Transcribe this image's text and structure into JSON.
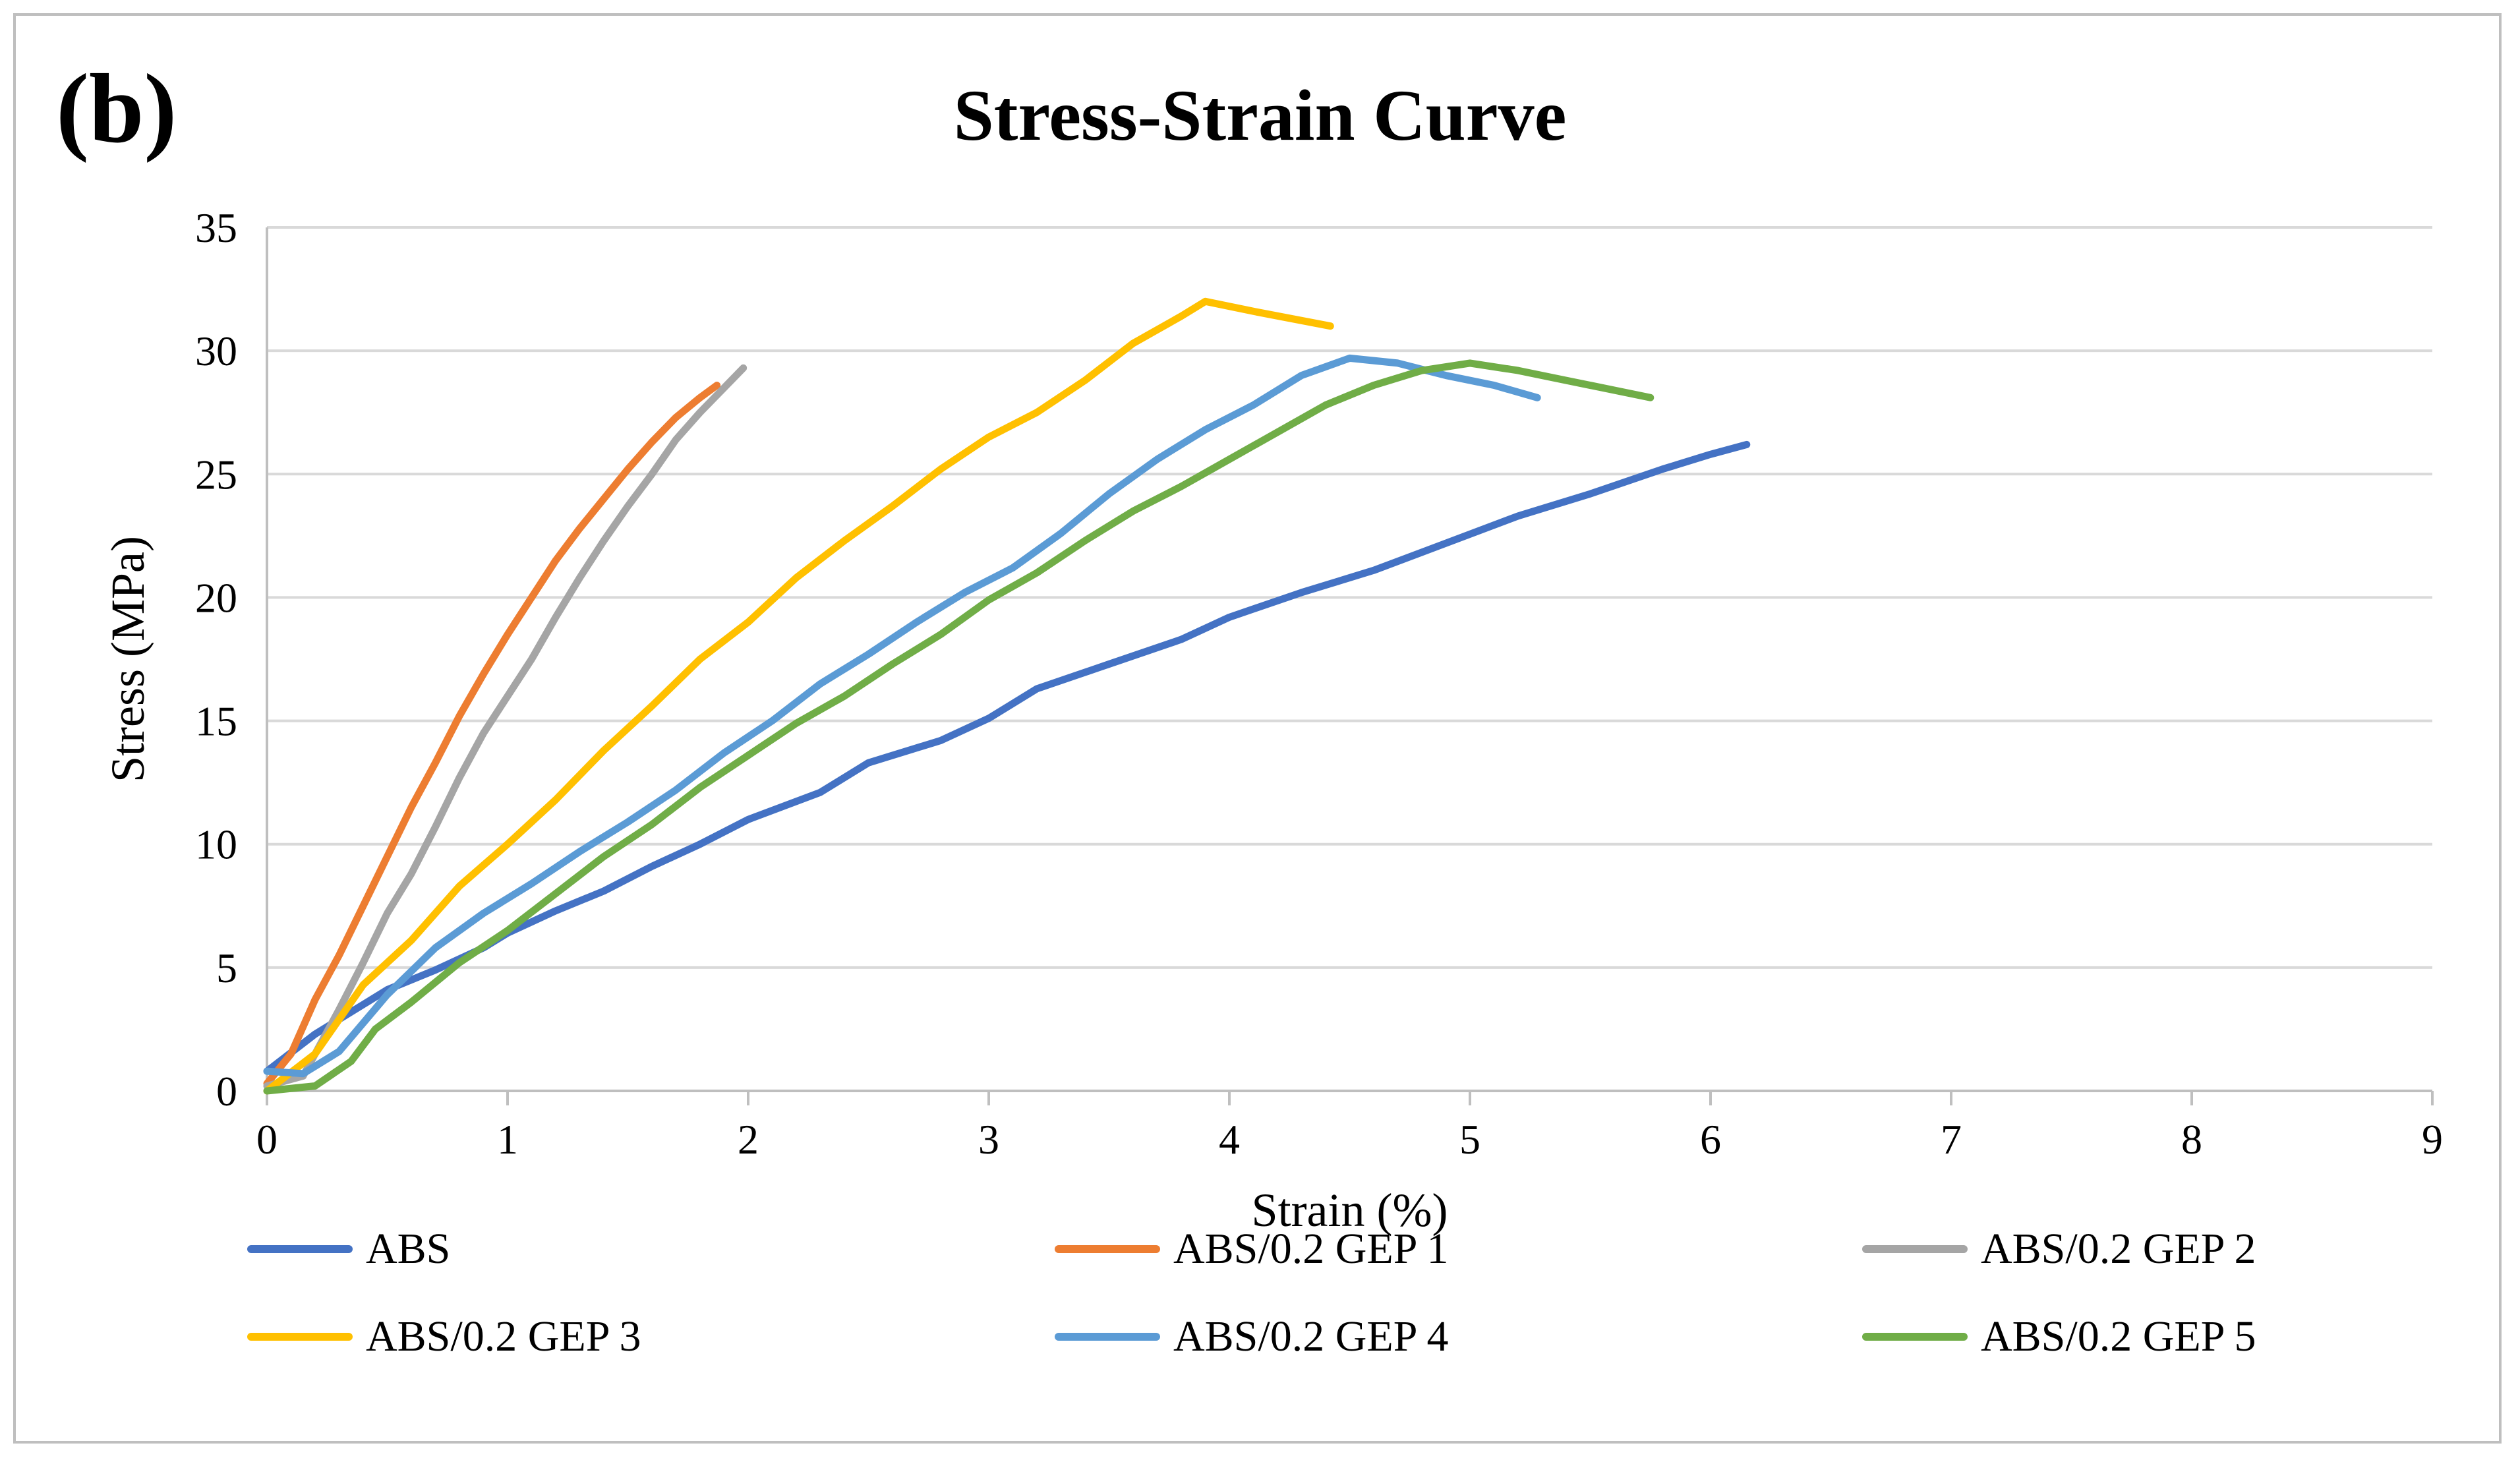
{
  "panel_label": "(b)",
  "chart_data": {
    "type": "line",
    "title": "Stress-Strain Curve",
    "xlabel": "Strain (%)",
    "ylabel": "Stress (MPa)",
    "xlim": [
      0,
      9
    ],
    "ylim": [
      0,
      35
    ],
    "xticks": [
      0,
      1,
      2,
      3,
      4,
      5,
      6,
      7,
      8,
      9
    ],
    "yticks": [
      0,
      5,
      10,
      15,
      20,
      25,
      30,
      35
    ],
    "grid": "horizontal",
    "legend_position": "bottom",
    "series": [
      {
        "name": "ABS",
        "color": "#4472C4",
        "points": [
          [
            0,
            0.8
          ],
          [
            0.2,
            2.3
          ],
          [
            0.4,
            3.5
          ],
          [
            0.5,
            4.1
          ],
          [
            0.7,
            4.9
          ],
          [
            0.9,
            5.8
          ],
          [
            1.0,
            6.4
          ],
          [
            1.2,
            7.3
          ],
          [
            1.4,
            8.1
          ],
          [
            1.6,
            9.1
          ],
          [
            1.8,
            10.0
          ],
          [
            2.0,
            11.0
          ],
          [
            2.3,
            12.1
          ],
          [
            2.5,
            13.3
          ],
          [
            2.8,
            14.2
          ],
          [
            3.0,
            15.1
          ],
          [
            3.2,
            16.3
          ],
          [
            3.5,
            17.3
          ],
          [
            3.8,
            18.3
          ],
          [
            4.0,
            19.2
          ],
          [
            4.3,
            20.2
          ],
          [
            4.6,
            21.1
          ],
          [
            4.9,
            22.2
          ],
          [
            5.2,
            23.3
          ],
          [
            5.5,
            24.2
          ],
          [
            5.8,
            25.2
          ],
          [
            6.0,
            25.8
          ],
          [
            6.15,
            26.2
          ]
        ]
      },
      {
        "name": "ABS/0.2 GEP 1",
        "color": "#ED7D31",
        "points": [
          [
            0,
            0.3
          ],
          [
            0.1,
            1.5
          ],
          [
            0.2,
            3.7
          ],
          [
            0.3,
            5.5
          ],
          [
            0.4,
            7.5
          ],
          [
            0.5,
            9.5
          ],
          [
            0.6,
            11.5
          ],
          [
            0.7,
            13.3
          ],
          [
            0.8,
            15.2
          ],
          [
            0.9,
            16.9
          ],
          [
            1.0,
            18.5
          ],
          [
            1.1,
            20.0
          ],
          [
            1.2,
            21.5
          ],
          [
            1.3,
            22.8
          ],
          [
            1.4,
            24.0
          ],
          [
            1.5,
            25.2
          ],
          [
            1.6,
            26.3
          ],
          [
            1.7,
            27.3
          ],
          [
            1.8,
            28.1
          ],
          [
            1.87,
            28.6
          ]
        ]
      },
      {
        "name": "ABS/0.2 GEP 2",
        "color": "#A5A5A5",
        "points": [
          [
            0,
            0.2
          ],
          [
            0.15,
            0.6
          ],
          [
            0.3,
            3.3
          ],
          [
            0.4,
            5.2
          ],
          [
            0.5,
            7.2
          ],
          [
            0.6,
            8.8
          ],
          [
            0.7,
            10.7
          ],
          [
            0.8,
            12.7
          ],
          [
            0.9,
            14.5
          ],
          [
            1.0,
            16.0
          ],
          [
            1.1,
            17.5
          ],
          [
            1.2,
            19.2
          ],
          [
            1.3,
            20.8
          ],
          [
            1.4,
            22.3
          ],
          [
            1.5,
            23.7
          ],
          [
            1.6,
            25.0
          ],
          [
            1.7,
            26.4
          ],
          [
            1.8,
            27.5
          ],
          [
            1.9,
            28.5
          ],
          [
            1.98,
            29.3
          ]
        ]
      },
      {
        "name": "ABS/0.2 GEP 3",
        "color": "#FFC000",
        "points": [
          [
            0,
            0
          ],
          [
            0.2,
            1.5
          ],
          [
            0.4,
            4.3
          ],
          [
            0.6,
            6.1
          ],
          [
            0.8,
            8.3
          ],
          [
            1.0,
            10.0
          ],
          [
            1.2,
            11.8
          ],
          [
            1.4,
            13.8
          ],
          [
            1.6,
            15.6
          ],
          [
            1.8,
            17.5
          ],
          [
            2.0,
            19.0
          ],
          [
            2.2,
            20.8
          ],
          [
            2.4,
            22.3
          ],
          [
            2.6,
            23.7
          ],
          [
            2.8,
            25.2
          ],
          [
            3.0,
            26.5
          ],
          [
            3.2,
            27.5
          ],
          [
            3.4,
            28.8
          ],
          [
            3.6,
            30.3
          ],
          [
            3.8,
            31.4
          ],
          [
            3.9,
            32.0
          ],
          [
            4.1,
            31.6
          ],
          [
            4.42,
            31.0
          ]
        ]
      },
      {
        "name": "ABS/0.2 GEP 4",
        "color": "#5B9BD5",
        "points": [
          [
            0,
            0.8
          ],
          [
            0.15,
            0.7
          ],
          [
            0.3,
            1.6
          ],
          [
            0.5,
            3.9
          ],
          [
            0.7,
            5.8
          ],
          [
            0.9,
            7.2
          ],
          [
            1.1,
            8.4
          ],
          [
            1.3,
            9.7
          ],
          [
            1.5,
            10.9
          ],
          [
            1.7,
            12.2
          ],
          [
            1.9,
            13.7
          ],
          [
            2.1,
            15.0
          ],
          [
            2.3,
            16.5
          ],
          [
            2.5,
            17.7
          ],
          [
            2.7,
            19.0
          ],
          [
            2.9,
            20.2
          ],
          [
            3.1,
            21.2
          ],
          [
            3.3,
            22.6
          ],
          [
            3.5,
            24.2
          ],
          [
            3.7,
            25.6
          ],
          [
            3.9,
            26.8
          ],
          [
            4.1,
            27.8
          ],
          [
            4.3,
            29.0
          ],
          [
            4.5,
            29.7
          ],
          [
            4.7,
            29.5
          ],
          [
            4.9,
            29.0
          ],
          [
            5.1,
            28.6
          ],
          [
            5.28,
            28.1
          ]
        ]
      },
      {
        "name": "ABS/0.2 GEP 5",
        "color": "#70AD47",
        "points": [
          [
            0,
            0
          ],
          [
            0.2,
            0.2
          ],
          [
            0.35,
            1.2
          ],
          [
            0.45,
            2.5
          ],
          [
            0.6,
            3.6
          ],
          [
            0.8,
            5.2
          ],
          [
            1.0,
            6.5
          ],
          [
            1.2,
            8.0
          ],
          [
            1.4,
            9.5
          ],
          [
            1.6,
            10.8
          ],
          [
            1.8,
            12.3
          ],
          [
            2.0,
            13.6
          ],
          [
            2.2,
            14.9
          ],
          [
            2.4,
            16.0
          ],
          [
            2.6,
            17.3
          ],
          [
            2.8,
            18.5
          ],
          [
            3.0,
            19.9
          ],
          [
            3.2,
            21.0
          ],
          [
            3.4,
            22.3
          ],
          [
            3.6,
            23.5
          ],
          [
            3.8,
            24.5
          ],
          [
            4.0,
            25.6
          ],
          [
            4.2,
            26.7
          ],
          [
            4.4,
            27.8
          ],
          [
            4.6,
            28.6
          ],
          [
            4.8,
            29.2
          ],
          [
            5.0,
            29.5
          ],
          [
            5.2,
            29.2
          ],
          [
            5.4,
            28.8
          ],
          [
            5.6,
            28.4
          ],
          [
            5.75,
            28.1
          ]
        ]
      }
    ]
  }
}
